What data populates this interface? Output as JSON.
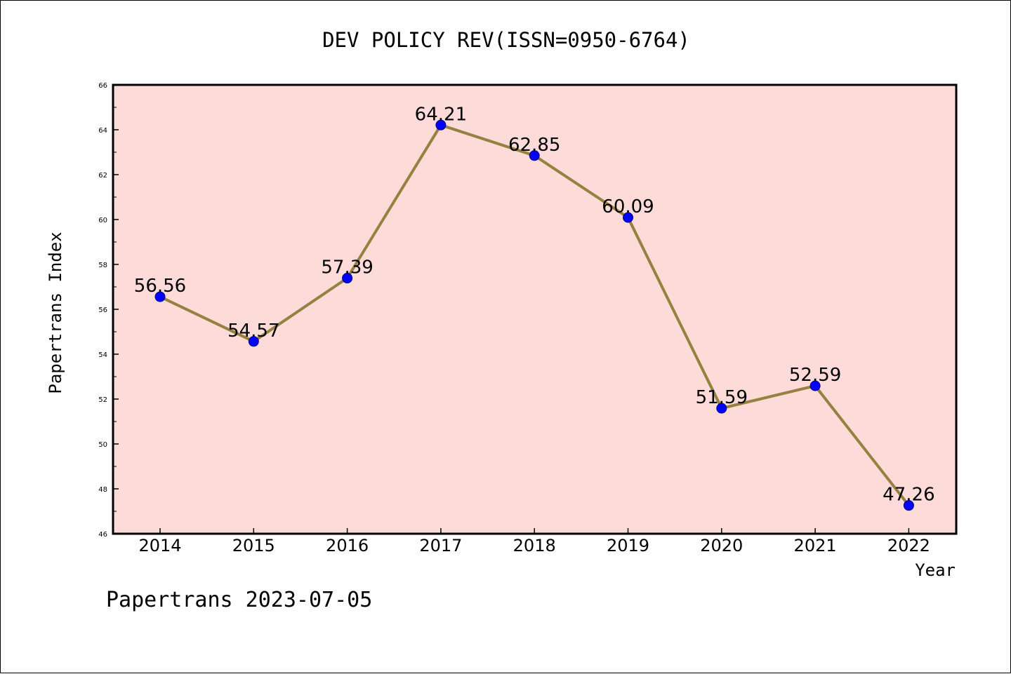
{
  "colors": {
    "plot_background": "#fddbd9",
    "line": "#958240",
    "marker": "#0000ff",
    "axis": "#000000"
  },
  "footer": {
    "text": "Papertrans 2023-07-05"
  },
  "chart_data": {
    "type": "line",
    "title": "DEV POLICY REV(ISSN=0950-6764)",
    "xlabel": "Year",
    "ylabel": "Papertrans Index",
    "categories": [
      "2014",
      "2015",
      "2016",
      "2017",
      "2018",
      "2019",
      "2020",
      "2021",
      "2022"
    ],
    "series": [
      {
        "values": [
          56.56,
          54.57,
          57.39,
          64.21,
          62.85,
          60.09,
          51.59,
          52.59,
          47.26
        ],
        "labels": [
          "56.56",
          "54.57",
          "57.39",
          "64.21",
          "62.85",
          "60.09",
          "51.59",
          "52.59",
          "47.26"
        ]
      }
    ],
    "ylim": [
      46,
      66
    ],
    "yticks": [
      46,
      48,
      50,
      52,
      54,
      56,
      58,
      60,
      62,
      64,
      66
    ],
    "grid": false,
    "legend": "none"
  }
}
